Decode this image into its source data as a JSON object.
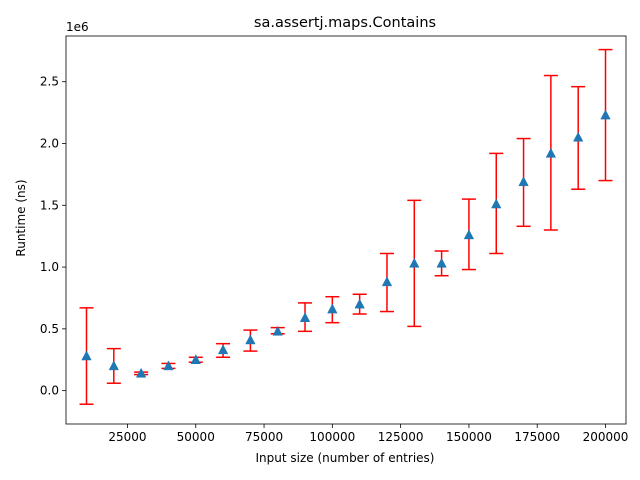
{
  "chart_data": {
    "type": "scatter",
    "title": "sa.assertj.maps.Contains",
    "xlabel": "Input size (number of entries)",
    "ylabel": "Runtime (ns)",
    "y_offset_label": "1e6",
    "xlim": [
      2500,
      207500
    ],
    "ylim": [
      -0.27,
      2.87
    ],
    "x_ticks": [
      25000,
      50000,
      75000,
      100000,
      125000,
      150000,
      175000,
      200000
    ],
    "x_tick_labels": [
      "25000",
      "50000",
      "75000",
      "100000",
      "125000",
      "150000",
      "175000",
      "200000"
    ],
    "y_ticks": [
      0.0,
      0.5,
      1.0,
      1.5,
      2.0,
      2.5
    ],
    "y_tick_labels": [
      "0.0",
      "0.5",
      "1.0",
      "1.5",
      "2.0",
      "2.5"
    ],
    "grid": false,
    "marker_color": "#1f77b4",
    "errorbar_color": "#ff0000",
    "points": [
      {
        "x": 10000,
        "y": 0.28,
        "low": -0.11,
        "high": 0.67
      },
      {
        "x": 20000,
        "y": 0.2,
        "low": 0.06,
        "high": 0.34
      },
      {
        "x": 30000,
        "y": 0.14,
        "low": 0.13,
        "high": 0.15
      },
      {
        "x": 40000,
        "y": 0.2,
        "low": 0.18,
        "high": 0.22
      },
      {
        "x": 50000,
        "y": 0.25,
        "low": 0.23,
        "high": 0.27
      },
      {
        "x": 60000,
        "y": 0.33,
        "low": 0.27,
        "high": 0.38
      },
      {
        "x": 70000,
        "y": 0.41,
        "low": 0.32,
        "high": 0.49
      },
      {
        "x": 80000,
        "y": 0.48,
        "low": 0.46,
        "high": 0.51
      },
      {
        "x": 90000,
        "y": 0.59,
        "low": 0.48,
        "high": 0.71
      },
      {
        "x": 100000,
        "y": 0.66,
        "low": 0.55,
        "high": 0.76
      },
      {
        "x": 110000,
        "y": 0.7,
        "low": 0.62,
        "high": 0.78
      },
      {
        "x": 120000,
        "y": 0.88,
        "low": 0.64,
        "high": 1.11
      },
      {
        "x": 130000,
        "y": 1.03,
        "low": 0.52,
        "high": 1.54
      },
      {
        "x": 140000,
        "y": 1.03,
        "low": 0.93,
        "high": 1.13
      },
      {
        "x": 150000,
        "y": 1.26,
        "low": 0.98,
        "high": 1.55
      },
      {
        "x": 160000,
        "y": 1.51,
        "low": 1.11,
        "high": 1.92
      },
      {
        "x": 170000,
        "y": 1.69,
        "low": 1.33,
        "high": 2.04
      },
      {
        "x": 180000,
        "y": 1.92,
        "low": 1.3,
        "high": 2.55
      },
      {
        "x": 190000,
        "y": 2.05,
        "low": 1.63,
        "high": 2.46
      },
      {
        "x": 200000,
        "y": 2.23,
        "low": 1.7,
        "high": 2.76
      }
    ]
  }
}
